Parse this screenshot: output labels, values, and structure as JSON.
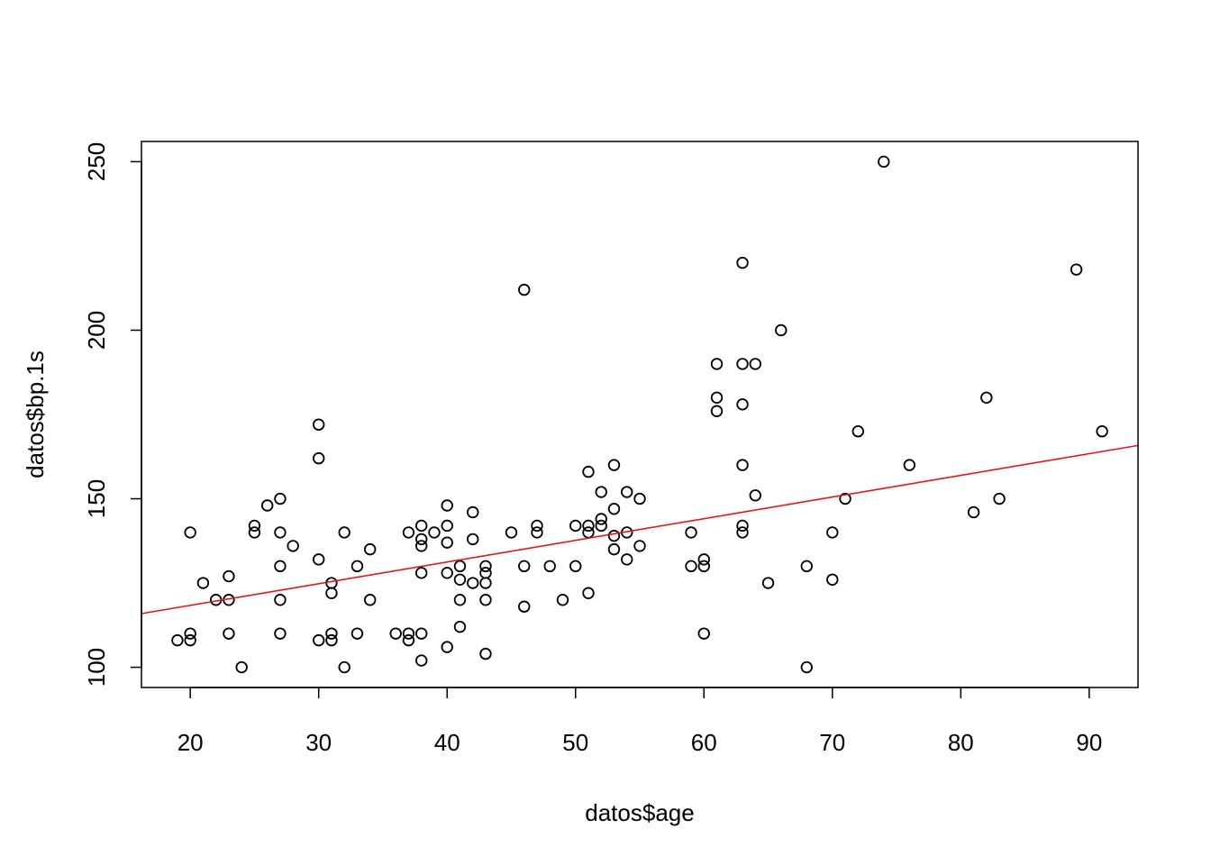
{
  "chart_data": {
    "type": "scatter",
    "title": "",
    "xlabel": "datos$age",
    "ylabel": "datos$bp.1s",
    "xlim": [
      16.2,
      93.8
    ],
    "ylim": [
      94,
      256
    ],
    "x_ticks": [
      20,
      30,
      40,
      50,
      60,
      70,
      80,
      90
    ],
    "y_ticks": [
      100,
      150,
      200,
      250
    ],
    "grid": false,
    "legend": "none",
    "point_color": "#000000",
    "fit_line": {
      "intercept": 105.5,
      "slope": 0.643,
      "color": "#e8141a"
    },
    "points": [
      [
        19,
        108
      ],
      [
        20,
        108
      ],
      [
        20,
        110
      ],
      [
        20,
        140
      ],
      [
        21,
        125
      ],
      [
        22,
        120
      ],
      [
        23,
        120
      ],
      [
        23,
        127
      ],
      [
        23,
        110
      ],
      [
        24,
        100
      ],
      [
        25,
        140
      ],
      [
        25,
        142
      ],
      [
        26,
        148
      ],
      [
        27,
        150
      ],
      [
        27,
        140
      ],
      [
        27,
        130
      ],
      [
        27,
        120
      ],
      [
        27,
        110
      ],
      [
        28,
        136
      ],
      [
        30,
        172
      ],
      [
        30,
        162
      ],
      [
        30,
        132
      ],
      [
        30,
        108
      ],
      [
        31,
        125
      ],
      [
        31,
        122
      ],
      [
        31,
        110
      ],
      [
        31,
        108
      ],
      [
        32,
        140
      ],
      [
        32,
        100
      ],
      [
        33,
        130
      ],
      [
        33,
        110
      ],
      [
        34,
        135
      ],
      [
        34,
        120
      ],
      [
        36,
        110
      ],
      [
        37,
        140
      ],
      [
        37,
        110
      ],
      [
        37,
        108
      ],
      [
        38,
        142
      ],
      [
        38,
        138
      ],
      [
        38,
        136
      ],
      [
        38,
        128
      ],
      [
        38,
        110
      ],
      [
        38,
        102
      ],
      [
        39,
        140
      ],
      [
        40,
        148
      ],
      [
        40,
        142
      ],
      [
        40,
        137
      ],
      [
        40,
        128
      ],
      [
        40,
        106
      ],
      [
        41,
        130
      ],
      [
        41,
        126
      ],
      [
        41,
        120
      ],
      [
        41,
        112
      ],
      [
        42,
        146
      ],
      [
        42,
        138
      ],
      [
        42,
        125
      ],
      [
        43,
        130
      ],
      [
        43,
        128
      ],
      [
        43,
        125
      ],
      [
        43,
        120
      ],
      [
        43,
        104
      ],
      [
        45,
        140
      ],
      [
        46,
        212
      ],
      [
        46,
        130
      ],
      [
        46,
        118
      ],
      [
        47,
        142
      ],
      [
        47,
        140
      ],
      [
        48,
        130
      ],
      [
        49,
        120
      ],
      [
        50,
        142
      ],
      [
        50,
        130
      ],
      [
        51,
        158
      ],
      [
        51,
        142
      ],
      [
        51,
        140
      ],
      [
        51,
        122
      ],
      [
        52,
        152
      ],
      [
        52,
        144
      ],
      [
        52,
        142
      ],
      [
        53,
        160
      ],
      [
        53,
        147
      ],
      [
        53,
        139
      ],
      [
        53,
        135
      ],
      [
        54,
        152
      ],
      [
        54,
        140
      ],
      [
        54,
        132
      ],
      [
        55,
        150
      ],
      [
        55,
        136
      ],
      [
        59,
        140
      ],
      [
        59,
        130
      ],
      [
        60,
        132
      ],
      [
        60,
        130
      ],
      [
        60,
        110
      ],
      [
        61,
        190
      ],
      [
        61,
        180
      ],
      [
        61,
        176
      ],
      [
        63,
        220
      ],
      [
        63,
        190
      ],
      [
        63,
        178
      ],
      [
        63,
        160
      ],
      [
        63,
        142
      ],
      [
        63,
        140
      ],
      [
        64,
        190
      ],
      [
        64,
        151
      ],
      [
        65,
        125
      ],
      [
        66,
        200
      ],
      [
        68,
        130
      ],
      [
        68,
        100
      ],
      [
        70,
        140
      ],
      [
        70,
        126
      ],
      [
        71,
        150
      ],
      [
        72,
        170
      ],
      [
        74,
        250
      ],
      [
        76,
        160
      ],
      [
        81,
        146
      ],
      [
        82,
        180
      ],
      [
        83,
        150
      ],
      [
        89,
        218
      ],
      [
        91,
        170
      ]
    ]
  }
}
